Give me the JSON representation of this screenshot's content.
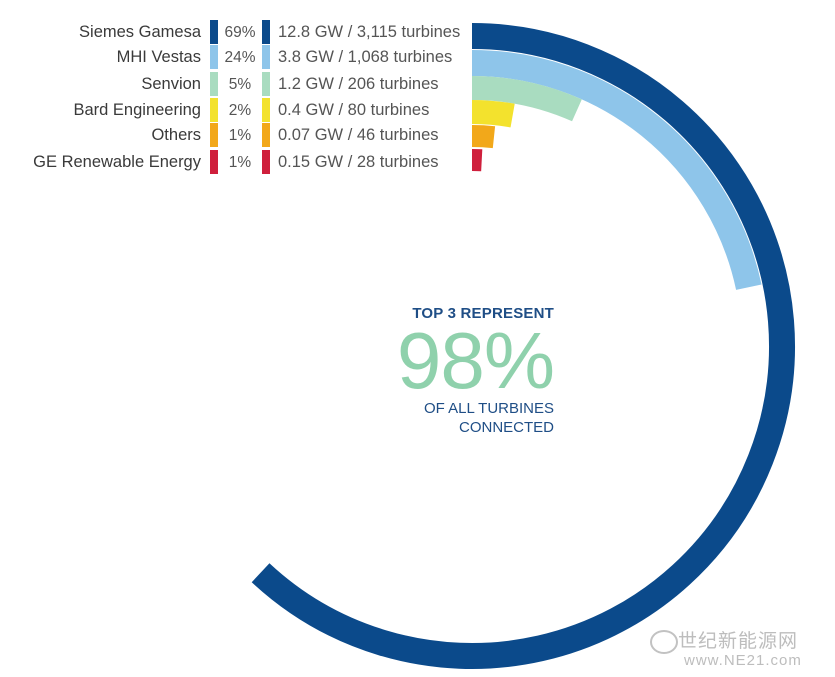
{
  "chart_data": {
    "type": "radial-bar",
    "series": [
      {
        "name": "Siemes Gamesa",
        "percent": 69,
        "percent_label": "69%",
        "detail": "12.8 GW / 3,115 turbines",
        "color": "#0b4a8b"
      },
      {
        "name": "MHI Vestas",
        "percent": 24,
        "percent_label": "24%",
        "detail": "3.8 GW / 1,068 turbines",
        "color": "#8ec5ea"
      },
      {
        "name": "Senvion",
        "percent": 5,
        "percent_label": "5%",
        "detail": "1.2 GW / 206 turbines",
        "color": "#a9dcc0"
      },
      {
        "name": "Bard Engineering",
        "percent": 2,
        "percent_label": "2%",
        "detail": "0.4 GW / 80 turbines",
        "color": "#f3e22d"
      },
      {
        "name": "Others",
        "percent": 1,
        "percent_label": "1%",
        "detail": "0.07 GW / 46 turbines",
        "color": "#f2a81a"
      },
      {
        "name": "GE Renewable Energy",
        "percent": 1,
        "percent_label": "1%",
        "detail": "0.15 GW / 28 turbines",
        "color": "#cf1f3c"
      }
    ],
    "arc_extent_degrees": [
      223,
      78,
      24,
      10,
      6,
      3
    ]
  },
  "center": {
    "title": "TOP 3 REPRESENT",
    "value": "98%",
    "subtitle_line1": "OF ALL TURBINES",
    "subtitle_line2": "CONNECTED"
  },
  "watermark": {
    "line1": "世纪新能源网",
    "line2": "www.NE21.com"
  }
}
